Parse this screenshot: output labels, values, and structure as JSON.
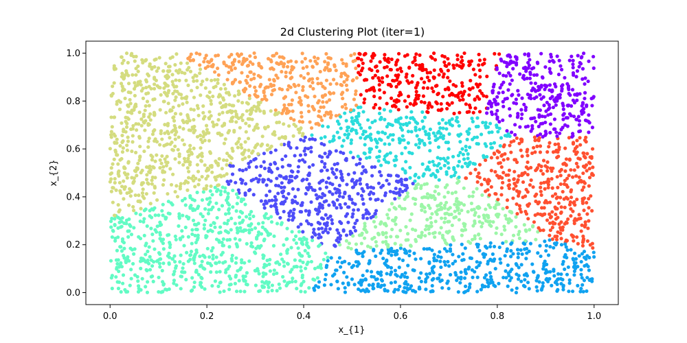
{
  "chart_data": {
    "type": "scatter",
    "title": "2d Clustering Plot (iter=1)",
    "xlabel": "x_{1}",
    "ylabel": "x_{2}",
    "xlim": [
      -0.05,
      1.05
    ],
    "ylim": [
      -0.05,
      1.05
    ],
    "xticks": [
      0.0,
      0.2,
      0.4,
      0.6,
      0.8,
      1.0
    ],
    "xtick_labels": [
      "0.0",
      "0.2",
      "0.4",
      "0.6",
      "0.8",
      "1.0"
    ],
    "yticks": [
      0.0,
      0.2,
      0.4,
      0.6,
      0.8,
      1.0
    ],
    "ytick_labels": [
      "0.0",
      "0.2",
      "0.4",
      "0.6",
      "0.8",
      "1.0"
    ],
    "grid": false,
    "num_clusters": 11,
    "cluster_centroids": [
      {
        "x": 0.92,
        "y": 0.85,
        "color": "#8000ff"
      },
      {
        "x": 0.66,
        "y": 0.88,
        "color": "#ff0000"
      },
      {
        "x": 0.91,
        "y": 0.45,
        "color": "#ff5030"
      },
      {
        "x": 0.22,
        "y": 0.76,
        "color": "#d4dc7f"
      },
      {
        "x": 0.7,
        "y": 0.3,
        "color": "#9cf6a7"
      },
      {
        "x": 0.36,
        "y": 0.88,
        "color": "#ffa256"
      },
      {
        "x": 0.62,
        "y": 0.63,
        "color": "#2adcdc"
      },
      {
        "x": 0.19,
        "y": 0.23,
        "color": "#62fbc4"
      },
      {
        "x": 0.46,
        "y": 0.45,
        "color": "#4e4df9"
      },
      {
        "x": 0.72,
        "y": 0.1,
        "color": "#10a2f0"
      },
      {
        "x": 0.02,
        "y": 0.52,
        "color": "#d4dc7f"
      }
    ]
  }
}
